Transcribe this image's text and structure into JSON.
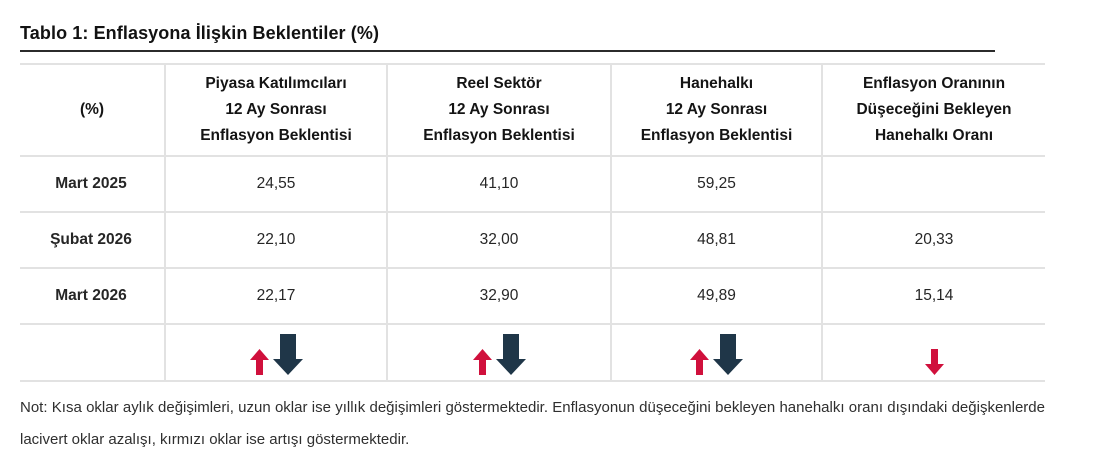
{
  "page": {
    "title": "Tablo 1: Enflasyona İlişkin Beklentiler (%)"
  },
  "table": {
    "columns": [
      {
        "lines": [
          "(%)"
        ]
      },
      {
        "lines": [
          "Piyasa Katılımcıları",
          "12 Ay Sonrası",
          "Enflasyon Beklentisi"
        ]
      },
      {
        "lines": [
          "Reel Sektör",
          "12 Ay Sonrası",
          "Enflasyon Beklentisi"
        ]
      },
      {
        "lines": [
          "Hanehalkı",
          "12 Ay Sonrası",
          "Enflasyon Beklentisi"
        ]
      },
      {
        "lines": [
          "Enflasyon Oranının",
          "Düşeceğini Bekleyen",
          "Hanehalkı Oranı"
        ]
      }
    ],
    "rows": [
      {
        "label": "Mart 2025",
        "values": [
          "24,55",
          "41,10",
          "59,25",
          ""
        ]
      },
      {
        "label": "Şubat 2026",
        "values": [
          "22,10",
          "32,00",
          "48,81",
          "20,33"
        ]
      },
      {
        "label": "Mart 2026",
        "values": [
          "22,17",
          "32,90",
          "49,89",
          "15,14"
        ]
      }
    ],
    "arrow_cells": [
      [],
      [
        {
          "size": "short",
          "color": "red",
          "dir": "up"
        },
        {
          "size": "long",
          "color": "navy",
          "dir": "down"
        }
      ],
      [
        {
          "size": "short",
          "color": "red",
          "dir": "up"
        },
        {
          "size": "long",
          "color": "navy",
          "dir": "down"
        }
      ],
      [
        {
          "size": "short",
          "color": "red",
          "dir": "up"
        },
        {
          "size": "long",
          "color": "navy",
          "dir": "down"
        }
      ],
      [
        {
          "size": "short",
          "color": "red",
          "dir": "down"
        }
      ]
    ]
  },
  "note": "Not: Kısa oklar aylık değişimleri, uzun oklar ise yıllık değişimleri göstermektedir. Enflasyonun düşeceğini bekleyen hanehalkı oranı dışındaki değişkenlerde lacivert oklar azalışı, kırmızı oklar ise artışı göstermektedir.",
  "colors": {
    "red": "#d0103c",
    "navy": "#1f3648",
    "border": "#e2e2e2"
  }
}
